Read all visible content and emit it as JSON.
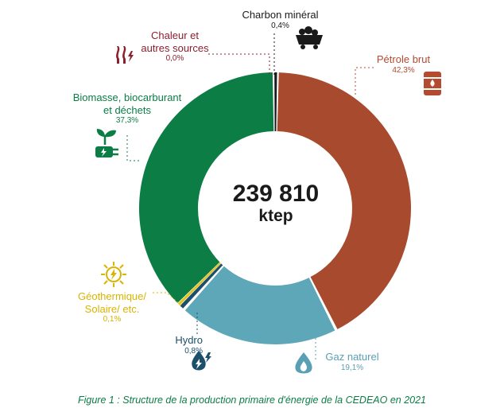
{
  "chart_data": {
    "type": "donut",
    "title": "",
    "center": {
      "total": "239 810",
      "unit": "ktep"
    },
    "slices": [
      {
        "key": "petrole",
        "label": "Pétrole brut",
        "pct_label": "42,3%",
        "value": 42.3,
        "color": "#a84a2d",
        "label_color": "#b44a30"
      },
      {
        "key": "gaz",
        "label": "Gaz naturel",
        "pct_label": "19,1%",
        "value": 19.1,
        "color": "#5ea7b8",
        "label_color": "#5a9fb3"
      },
      {
        "key": "hydro",
        "label": "Hydro",
        "pct_label": "0,8%",
        "value": 0.8,
        "color": "#1b4f6b",
        "label_color": "#1b4f6b"
      },
      {
        "key": "geo",
        "label": "Géothermique/ Solaire/ etc.",
        "pct_label": "0,1%",
        "value": 0.1,
        "color": "#e5c31a",
        "label_color": "#d9b400"
      },
      {
        "key": "biomasse",
        "label": "Biomasse, biocarburant et déchets",
        "pct_label": "37,3%",
        "value": 37.3,
        "color": "#0b7d45",
        "label_color": "#0b7d45"
      },
      {
        "key": "chaleur",
        "label": "Chaleur et autres sources",
        "pct_label": "0,0%",
        "value": 0.0,
        "color": "#8b1f2e",
        "label_color": "#8b1f2e"
      },
      {
        "key": "charbon",
        "label": "Charbon minéral",
        "pct_label": "0,4%",
        "value": 0.4,
        "color": "#1a1a1a",
        "label_color": "#1a1a1a"
      }
    ]
  },
  "labels": {
    "charbon_name": "Charbon minéral",
    "charbon_pct": "0,4%",
    "chaleur_name_1": "Chaleur et",
    "chaleur_name_2": "autres sources",
    "chaleur_pct": "0,0%",
    "petrole_name": "Pétrole brut",
    "petrole_pct": "42,3%",
    "biomasse_name_1": "Biomasse, biocarburant",
    "biomasse_name_2": "et déchets",
    "biomasse_pct": "37,3%",
    "geo_name_1": "Géothermique/",
    "geo_name_2": "Solaire/ etc.",
    "geo_pct": "0,1%",
    "hydro_name": "Hydro",
    "hydro_pct": "0,8%",
    "gaz_name": "Gaz naturel",
    "gaz_pct": "19,1%"
  },
  "icons": {
    "charbon": "coal-cart-icon",
    "chaleur": "heat-waves-icon",
    "petrole": "oil-barrel-icon",
    "biomasse": "plant-plug-icon",
    "geo": "sun-bolt-icon",
    "hydro": "water-bolt-icon",
    "gaz": "gas-flame-drop-icon"
  },
  "caption": "Figure 1 : Structure de la production primaire d'énergie de la CEDEAO en 2021"
}
